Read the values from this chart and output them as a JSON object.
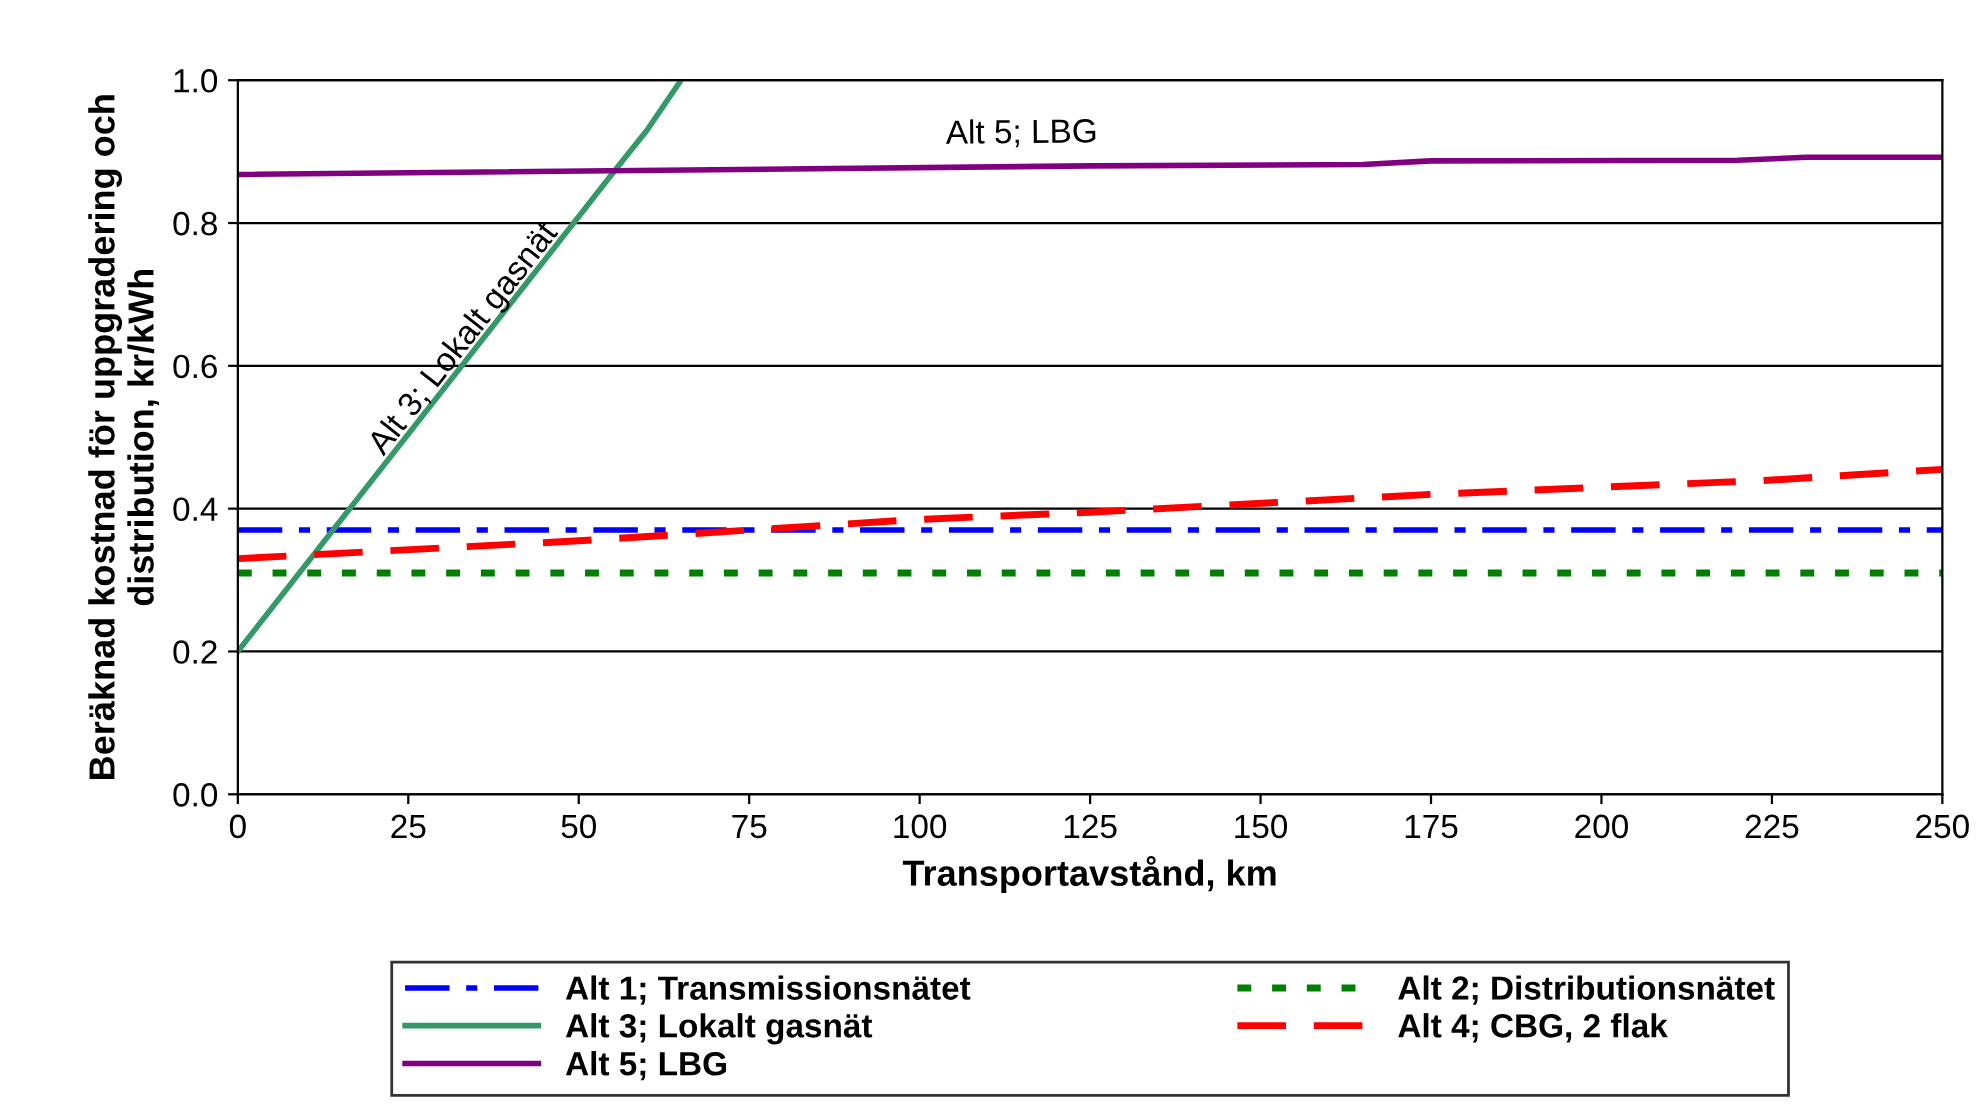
{
  "chart_data": {
    "type": "line",
    "xlabel": "Transportavstånd, km",
    "ylabel": "Beräknad kostnad för uppgradering och\ndistribution, kr/kWh",
    "xlim": [
      0,
      250
    ],
    "xticks": [
      0,
      25,
      50,
      75,
      100,
      125,
      150,
      175,
      200,
      225,
      250
    ],
    "ylim": [
      0,
      1.0
    ],
    "yticks": [
      {
        "value": 0,
        "label": "0.0"
      },
      {
        "value": 0.2,
        "label": "0.2"
      },
      {
        "value": 0.4,
        "label": "0.4"
      },
      {
        "value": 0.6,
        "label": "0.6"
      },
      {
        "value": 0.8,
        "label": "0.8"
      },
      {
        "value": 1.0,
        "label": "1.0"
      }
    ],
    "grid": "y",
    "legend": "bottom",
    "marker": "none",
    "series": [
      {
        "name": "Alt 1; Transmissionsnätet",
        "color": "#0000ff",
        "line_style": "dashdot",
        "x": [
          0,
          250
        ],
        "values": [
          0.37,
          0.37
        ]
      },
      {
        "name": "Alt 2; Distributionsnätet",
        "color": "#008000",
        "line_style": "dotted",
        "x": [
          0,
          250
        ],
        "values": [
          0.31,
          0.31
        ]
      },
      {
        "name": "Alt 3; Lokalt gasnät",
        "color": "#339966",
        "line_style": "solid",
        "x": [
          0,
          55,
          60,
          65
        ],
        "values": [
          0.2,
          0.87,
          0.93,
          1.0
        ]
      },
      {
        "name": "Alt 4; CBG, 2 flak",
        "color": "#ff0000",
        "line_style": "dashed",
        "x": [
          0,
          50,
          100,
          125,
          175,
          200,
          225,
          250
        ],
        "values": [
          0.33,
          0.355,
          0.385,
          0.395,
          0.42,
          0.43,
          0.44,
          0.455
        ]
      },
      {
        "name": "Alt 5; LBG",
        "color": "#800080",
        "line_style": "solid",
        "x": [
          0,
          125,
          165,
          175,
          220,
          230,
          250
        ],
        "values": [
          0.868,
          0.88,
          0.882,
          0.887,
          0.888,
          0.892,
          0.892
        ]
      }
    ],
    "annotations": [
      {
        "text": "Alt 5; LBG",
        "x": 115,
        "y": 0.879
      },
      {
        "text": "Alt 3; Lokalt gasnät",
        "x": 35,
        "y": 0.6
      }
    ]
  }
}
